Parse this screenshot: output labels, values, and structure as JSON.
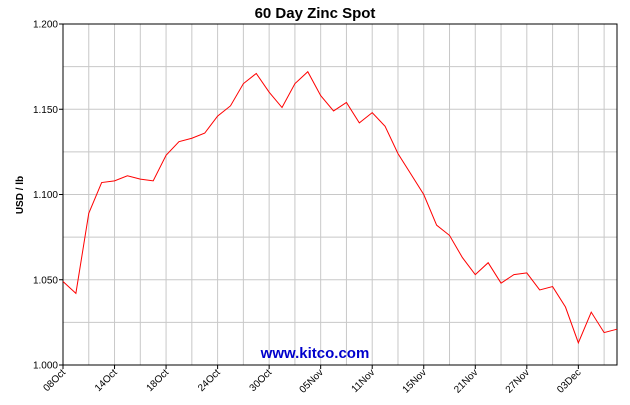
{
  "chart_data": {
    "type": "line",
    "title": "60 Day Zinc Spot",
    "xlabel": "",
    "ylabel": "USD / lb",
    "ylim": [
      1.0,
      1.2
    ],
    "yticks": [
      "1.000",
      "1.050",
      "1.100",
      "1.150",
      "1.200"
    ],
    "grid": true,
    "legend": "none",
    "x_tick_labels": [
      "08Oct",
      "14Oct",
      "18Oct",
      "24Oct",
      "30Oct",
      "05Nov",
      "11Nov",
      "15Nov",
      "21Nov",
      "27Nov",
      "03Dec"
    ],
    "x_tick_index": [
      0,
      4,
      8,
      12,
      16,
      20,
      24,
      28,
      32,
      36,
      40
    ],
    "series": [
      {
        "name": "",
        "color": "#ff0000",
        "values": [
          1.049,
          1.042,
          1.089,
          1.107,
          1.108,
          1.111,
          1.109,
          1.108,
          1.123,
          1.131,
          1.133,
          1.136,
          1.146,
          1.152,
          1.165,
          1.171,
          1.16,
          1.151,
          1.165,
          1.172,
          1.158,
          1.149,
          1.154,
          1.142,
          1.148,
          1.14,
          1.124,
          1.112,
          1.1,
          1.082,
          1.076,
          1.063,
          1.053,
          1.06,
          1.048,
          1.053,
          1.054,
          1.044,
          1.046,
          1.034,
          1.013,
          1.031,
          1.019,
          1.021
        ]
      }
    ]
  },
  "watermark": "www.kitco.com"
}
